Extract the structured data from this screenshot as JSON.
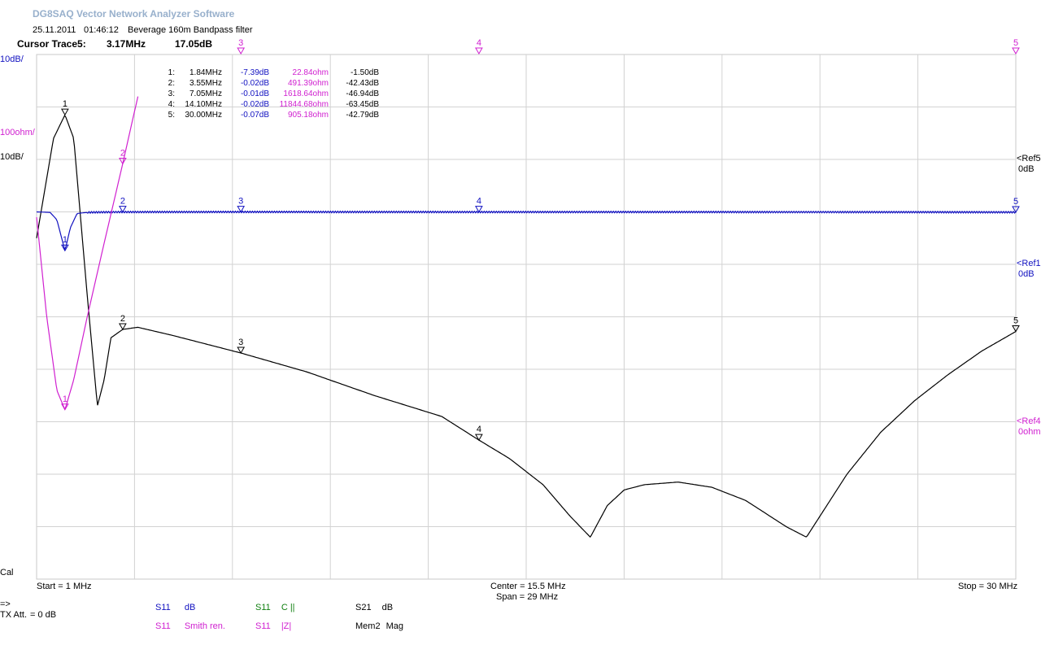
{
  "header": {
    "app_title": "DG8SAQ Vector Network Analyzer Software",
    "date": "25.11.2011",
    "time": "01:46:12",
    "measurement_name": "Beverage 160m Bandpass filter",
    "cursor_label": "Cursor Trace5:",
    "cursor_freq": "3.17MHz",
    "cursor_value": "17.05dB"
  },
  "scale_labels": {
    "top_db": "10dB/",
    "ohm": "100ohm/",
    "mid_db": "10dB/",
    "cal": "Cal"
  },
  "ref_labels": {
    "ref5": "<Ref5",
    "ref5_val": "0dB",
    "ref1": "<Ref1",
    "ref1_val": "0dB",
    "ref4": "<Ref4",
    "ref4_val": "0ohm"
  },
  "axis": {
    "start": "Start = 1 MHz",
    "center": "Center = 15.5 MHz",
    "span": "Span = 29 MHz",
    "stop": "Stop = 30 MHz"
  },
  "markers": [
    {
      "id": "1:",
      "freq": "1.84MHz",
      "s11_db": "-7.39dB",
      "z": "22.84ohm",
      "s21_db": "-1.50dB"
    },
    {
      "id": "2:",
      "freq": "3.55MHz",
      "s11_db": "-0.02dB",
      "z": "491.39ohm",
      "s21_db": "-42.43dB"
    },
    {
      "id": "3:",
      "freq": "7.05MHz",
      "s11_db": "-0.01dB",
      "z": "1618.64ohm",
      "s21_db": "-46.94dB"
    },
    {
      "id": "4:",
      "freq": "14.10MHz",
      "s11_db": "-0.02dB",
      "z": "11844.68ohm",
      "s21_db": "-63.45dB"
    },
    {
      "id": "5:",
      "freq": "30.00MHz",
      "s11_db": "-0.07dB",
      "z": "905.18ohm",
      "s21_db": "-42.79dB"
    }
  ],
  "legend": {
    "arrow": "=>",
    "tx_att_label": "TX Att.",
    "tx_att_value": "= 0 dB",
    "items": [
      {
        "param": "S11",
        "fmt": "dB",
        "color": "#1010c0"
      },
      {
        "param": "S11",
        "fmt": "C ||",
        "color": "#108010"
      },
      {
        "param": "S21",
        "fmt": "dB",
        "color": "#000000"
      },
      {
        "param": "S11",
        "fmt": "Smith ren.",
        "color": "#d020d0"
      },
      {
        "param": "S11",
        "fmt": "|Z|",
        "color": "#d020d0"
      },
      {
        "param": "Mem2",
        "fmt": "Mag",
        "color": "#000000"
      }
    ]
  },
  "chart_data": {
    "type": "line",
    "x_unit": "MHz",
    "xlim": [
      1,
      30
    ],
    "marker_freqs": [
      1.84,
      3.55,
      7.05,
      14.1,
      30.0
    ],
    "marker_labels": [
      "1",
      "2",
      "3",
      "4",
      "5"
    ],
    "series": [
      {
        "color": "#000000",
        "unit": "dB",
        "scale_per_div": 10,
        "ref_div_from_top": 1,
        "ylim": [
          -80,
          10
        ],
        "x": [
          1.0,
          1.5,
          1.84,
          2.1,
          2.5,
          2.8,
          3.0,
          3.2,
          3.55,
          4.0,
          5.0,
          7.05,
          9.0,
          11.0,
          13.0,
          14.1,
          15.0,
          16.0,
          16.8,
          17.4,
          17.9,
          18.4,
          19.0,
          20.0,
          21.0,
          22.0,
          23.2,
          23.8,
          24.4,
          25.0,
          26.0,
          27.0,
          28.0,
          29.0,
          30.0
        ],
        "y": [
          -25.0,
          -6.0,
          -1.5,
          -6.0,
          -36.0,
          -57.0,
          -52.0,
          -44.0,
          -42.4,
          -42.0,
          -43.5,
          -46.9,
          -50.5,
          -55.0,
          -59.0,
          -63.5,
          -67.0,
          -72.0,
          -78.0,
          -82.0,
          -76.0,
          -73.0,
          -72.0,
          -71.5,
          -72.5,
          -75.0,
          -80.0,
          -82.0,
          -76.0,
          -70.0,
          -62.0,
          -56.0,
          -51.0,
          -46.5,
          -42.8
        ]
      },
      {
        "color": "#1010c0",
        "unit": "dB",
        "scale_per_div": 10,
        "ref_div_from_top": 3,
        "ylim": [
          -60,
          30
        ],
        "x": [
          1.0,
          1.4,
          1.6,
          1.84,
          2.0,
          2.2,
          2.5,
          3.55,
          7.05,
          14.1,
          20.0,
          30.0
        ],
        "y": [
          0.0,
          -0.1,
          -1.5,
          -7.4,
          -3.0,
          -0.3,
          -0.1,
          -0.02,
          -0.01,
          -0.02,
          -0.02,
          -0.07
        ],
        "ripple": true
      },
      {
        "color": "#d020d0",
        "unit": "ohm",
        "scale_per_div": 100,
        "ref_div_from_top": 7,
        "ylim": [
          -200,
          700
        ],
        "x": [
          1.0,
          1.3,
          1.6,
          1.84,
          2.1,
          2.5,
          3.0,
          3.55,
          4.0
        ],
        "y": [
          390.0,
          200.0,
          60.0,
          22.8,
          80.0,
          200.0,
          340.0,
          491.4,
          620.0
        ]
      }
    ]
  }
}
